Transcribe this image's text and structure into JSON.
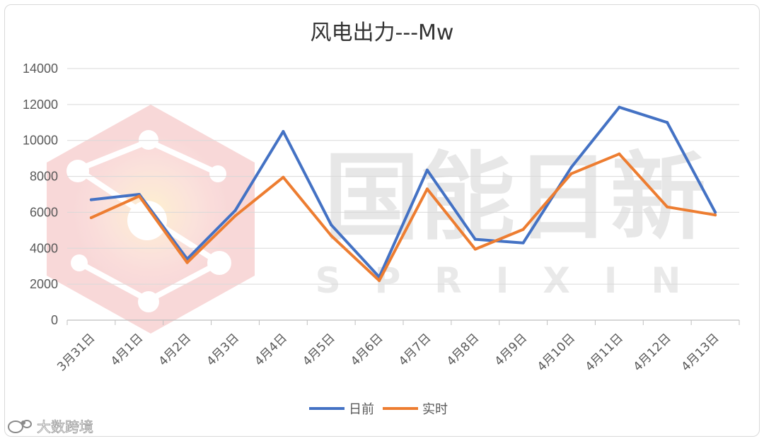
{
  "chart_data": {
    "type": "line",
    "title": "风电出力---Mw",
    "xlabel": "",
    "ylabel": "",
    "ylim": [
      0,
      14000
    ],
    "yticks": [
      0,
      2000,
      4000,
      6000,
      8000,
      10000,
      12000,
      14000
    ],
    "grid": true,
    "legend_position": "bottom",
    "categories": [
      "3月31日",
      "4月1日",
      "4月2日",
      "4月3日",
      "4月4日",
      "4月5日",
      "4月6日",
      "4月7日",
      "4月8日",
      "4月9日",
      "4月10日",
      "4月11日",
      "4月12日",
      "4月13日"
    ],
    "series": [
      {
        "name": "日前",
        "color": "#4472c4",
        "values": [
          6700,
          7000,
          3400,
          6100,
          10500,
          5300,
          2400,
          8350,
          4500,
          4300,
          8500,
          11850,
          11000,
          6000
        ]
      },
      {
        "name": "实时",
        "color": "#ed7d31",
        "values": [
          5700,
          6900,
          3200,
          5800,
          7950,
          4700,
          2200,
          7300,
          3950,
          5050,
          8150,
          9250,
          6300,
          5850
        ]
      }
    ]
  },
  "watermark": {
    "brand": "国能日新",
    "brand_en": "SPRIXIN",
    "logo_icon": "hexagon-network-logo",
    "credit": "大数跨境",
    "credit_icon": "weibo-logo"
  }
}
